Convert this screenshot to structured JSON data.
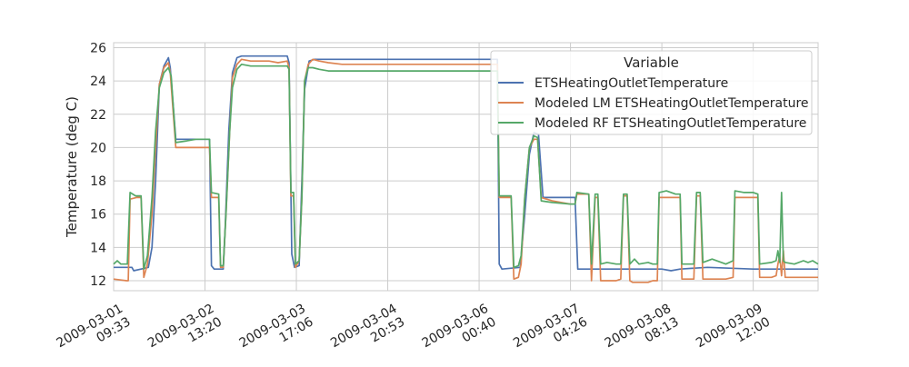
{
  "chart_data": {
    "type": "line",
    "title": "",
    "xlabel": "",
    "ylabel": "Temperature (deg C)",
    "ylim": [
      11.4,
      26.3
    ],
    "yticks": [
      12,
      14,
      16,
      18,
      20,
      22,
      24,
      26
    ],
    "grid": true,
    "legend": {
      "title": "Variable",
      "placement": "top-right"
    },
    "xticks": [
      {
        "x": 0.0,
        "line1": "2009-03-01",
        "line2": "09:33"
      },
      {
        "x": 1.0,
        "line1": "2009-03-02",
        "line2": "13:20"
      },
      {
        "x": 2.0,
        "line1": "2009-03-03",
        "line2": "17:06"
      },
      {
        "x": 3.0,
        "line1": "2009-03-04",
        "line2": "20:53"
      },
      {
        "x": 4.0,
        "line1": "2009-03-06",
        "line2": "00:40"
      },
      {
        "x": 5.0,
        "line1": "2009-03-07",
        "line2": "04:26"
      },
      {
        "x": 6.0,
        "line1": "2009-03-08",
        "line2": "08:13"
      },
      {
        "x": 7.0,
        "line1": "2009-03-09",
        "line2": "12:00"
      }
    ],
    "xlim": [
      0.0,
      7.71
    ],
    "series": [
      {
        "name": "ETSHeatingOutletTemperature",
        "color": "#4c72b0",
        "points": [
          [
            0,
            12.8
          ],
          [
            0.2,
            12.8
          ],
          [
            0.22,
            12.6
          ],
          [
            0.3,
            12.7
          ],
          [
            0.38,
            12.8
          ],
          [
            0.42,
            14
          ],
          [
            0.46,
            18
          ],
          [
            0.5,
            23.8
          ],
          [
            0.55,
            24.9
          ],
          [
            0.6,
            25.4
          ],
          [
            0.62,
            24.8
          ],
          [
            0.68,
            20.5
          ],
          [
            0.8,
            20.5
          ],
          [
            0.9,
            20.5
          ],
          [
            1.05,
            20.5
          ],
          [
            1.07,
            12.9
          ],
          [
            1.1,
            12.7
          ],
          [
            1.2,
            12.7
          ],
          [
            1.22,
            15
          ],
          [
            1.26,
            21
          ],
          [
            1.3,
            24.5
          ],
          [
            1.35,
            25.4
          ],
          [
            1.4,
            25.5
          ],
          [
            1.5,
            25.5
          ],
          [
            1.6,
            25.5
          ],
          [
            1.7,
            25.5
          ],
          [
            1.8,
            25.5
          ],
          [
            1.9,
            25.5
          ],
          [
            1.92,
            25.1
          ],
          [
            1.95,
            13.6
          ],
          [
            1.98,
            12.8
          ],
          [
            2.03,
            12.9
          ],
          [
            2.06,
            18
          ],
          [
            2.09,
            23.5
          ],
          [
            2.14,
            25.2
          ],
          [
            2.2,
            25.3
          ],
          [
            2.5,
            25.3
          ],
          [
            3.0,
            25.3
          ],
          [
            3.5,
            25.3
          ],
          [
            4.0,
            25.3
          ],
          [
            4.2,
            25.3
          ],
          [
            4.22,
            13.0
          ],
          [
            4.25,
            12.7
          ],
          [
            4.45,
            12.8
          ],
          [
            4.5,
            16
          ],
          [
            4.55,
            19.6
          ],
          [
            4.6,
            20.9
          ],
          [
            4.65,
            20.8
          ],
          [
            4.7,
            17
          ],
          [
            4.8,
            17
          ],
          [
            5.0,
            17
          ],
          [
            5.05,
            17
          ],
          [
            5.08,
            12.7
          ],
          [
            5.2,
            12.7
          ],
          [
            6.0,
            12.7
          ],
          [
            6.1,
            12.6
          ],
          [
            6.2,
            12.7
          ],
          [
            6.5,
            12.8
          ],
          [
            7.0,
            12.7
          ],
          [
            7.2,
            12.7
          ],
          [
            7.3,
            12.7
          ],
          [
            7.5,
            12.7
          ],
          [
            7.71,
            12.7
          ]
        ]
      },
      {
        "name": "Modeled LM ETSHeatingOutletTemperature",
        "color": "#dd8452",
        "points": [
          [
            0,
            12.1
          ],
          [
            0.14,
            12.0
          ],
          [
            0.16,
            12.0
          ],
          [
            0.18,
            16.9
          ],
          [
            0.25,
            17.0
          ],
          [
            0.3,
            17.0
          ],
          [
            0.33,
            12.2
          ],
          [
            0.37,
            13.0
          ],
          [
            0.42,
            16
          ],
          [
            0.46,
            20
          ],
          [
            0.5,
            23.8
          ],
          [
            0.55,
            24.8
          ],
          [
            0.6,
            25.1
          ],
          [
            0.62,
            24.5
          ],
          [
            0.68,
            20.0
          ],
          [
            0.8,
            20.0
          ],
          [
            0.9,
            20.0
          ],
          [
            1.05,
            20.0
          ],
          [
            1.07,
            17.0
          ],
          [
            1.15,
            17.0
          ],
          [
            1.17,
            12.8
          ],
          [
            1.2,
            12.8
          ],
          [
            1.23,
            16
          ],
          [
            1.27,
            21
          ],
          [
            1.3,
            24.2
          ],
          [
            1.35,
            25.0
          ],
          [
            1.4,
            25.3
          ],
          [
            1.5,
            25.2
          ],
          [
            1.6,
            25.2
          ],
          [
            1.7,
            25.2
          ],
          [
            1.8,
            25.1
          ],
          [
            1.9,
            25.2
          ],
          [
            1.92,
            24.8
          ],
          [
            1.94,
            17.1
          ],
          [
            1.97,
            17.1
          ],
          [
            1.99,
            12.8
          ],
          [
            2.03,
            13.2
          ],
          [
            2.06,
            17
          ],
          [
            2.09,
            24
          ],
          [
            2.13,
            25.0
          ],
          [
            2.18,
            25.3
          ],
          [
            2.25,
            25.2
          ],
          [
            2.35,
            25.1
          ],
          [
            2.5,
            25.0
          ],
          [
            3.0,
            25.0
          ],
          [
            3.5,
            25.0
          ],
          [
            4.0,
            25.0
          ],
          [
            4.2,
            25.0
          ],
          [
            4.22,
            17.0
          ],
          [
            4.35,
            17.0
          ],
          [
            4.38,
            12.1
          ],
          [
            4.43,
            12.2
          ],
          [
            4.46,
            13
          ],
          [
            4.5,
            17
          ],
          [
            4.55,
            20
          ],
          [
            4.6,
            20.5
          ],
          [
            4.64,
            20.5
          ],
          [
            4.68,
            17.0
          ],
          [
            4.8,
            16.8
          ],
          [
            5.0,
            16.6
          ],
          [
            5.05,
            16.6
          ],
          [
            5.07,
            17.2
          ],
          [
            5.2,
            17.2
          ],
          [
            5.23,
            12.0
          ],
          [
            5.27,
            17.0
          ],
          [
            5.3,
            17.0
          ],
          [
            5.33,
            12.0
          ],
          [
            5.4,
            12.0
          ],
          [
            5.5,
            12.0
          ],
          [
            5.55,
            12.1
          ],
          [
            5.58,
            17.1
          ],
          [
            5.62,
            17.1
          ],
          [
            5.65,
            12.0
          ],
          [
            5.68,
            11.9
          ],
          [
            5.75,
            11.9
          ],
          [
            5.85,
            11.9
          ],
          [
            5.9,
            12.0
          ],
          [
            5.95,
            12.0
          ],
          [
            5.97,
            17.0
          ],
          [
            6.1,
            17.0
          ],
          [
            6.2,
            17.0
          ],
          [
            6.22,
            12.1
          ],
          [
            6.35,
            12.1
          ],
          [
            6.38,
            17.1
          ],
          [
            6.42,
            17.1
          ],
          [
            6.45,
            12.1
          ],
          [
            6.55,
            12.1
          ],
          [
            6.7,
            12.1
          ],
          [
            6.78,
            12.2
          ],
          [
            6.8,
            17.0
          ],
          [
            7.0,
            17.0
          ],
          [
            7.05,
            17.0
          ],
          [
            7.07,
            12.2
          ],
          [
            7.2,
            12.2
          ],
          [
            7.25,
            12.3
          ],
          [
            7.27,
            13.0
          ],
          [
            7.29,
            13.5
          ],
          [
            7.31,
            12.3
          ],
          [
            7.33,
            13.8
          ],
          [
            7.35,
            12.2
          ],
          [
            7.45,
            12.2
          ],
          [
            7.55,
            12.2
          ],
          [
            7.71,
            12.2
          ]
        ]
      },
      {
        "name": "Modeled RF ETSHeatingOutletTemperature",
        "color": "#55a868",
        "points": [
          [
            0,
            13.0
          ],
          [
            0.04,
            13.2
          ],
          [
            0.08,
            13.0
          ],
          [
            0.12,
            13.0
          ],
          [
            0.15,
            13.0
          ],
          [
            0.18,
            17.3
          ],
          [
            0.24,
            17.1
          ],
          [
            0.3,
            17.1
          ],
          [
            0.33,
            12.7
          ],
          [
            0.37,
            13.5
          ],
          [
            0.42,
            17
          ],
          [
            0.46,
            21
          ],
          [
            0.5,
            23.6
          ],
          [
            0.55,
            24.5
          ],
          [
            0.6,
            24.8
          ],
          [
            0.63,
            24.3
          ],
          [
            0.68,
            20.3
          ],
          [
            0.8,
            20.4
          ],
          [
            0.9,
            20.5
          ],
          [
            1.05,
            20.5
          ],
          [
            1.07,
            17.3
          ],
          [
            1.15,
            17.2
          ],
          [
            1.17,
            12.9
          ],
          [
            1.2,
            12.9
          ],
          [
            1.23,
            16
          ],
          [
            1.27,
            21
          ],
          [
            1.3,
            23.6
          ],
          [
            1.35,
            24.7
          ],
          [
            1.4,
            25.0
          ],
          [
            1.5,
            24.9
          ],
          [
            1.6,
            24.9
          ],
          [
            1.7,
            24.9
          ],
          [
            1.8,
            24.9
          ],
          [
            1.9,
            24.9
          ],
          [
            1.92,
            24.7
          ],
          [
            1.94,
            17.3
          ],
          [
            1.97,
            17.3
          ],
          [
            1.99,
            13.0
          ],
          [
            2.03,
            13.2
          ],
          [
            2.06,
            17
          ],
          [
            2.09,
            24
          ],
          [
            2.13,
            24.8
          ],
          [
            2.18,
            24.8
          ],
          [
            2.25,
            24.7
          ],
          [
            2.35,
            24.6
          ],
          [
            2.5,
            24.6
          ],
          [
            3.0,
            24.6
          ],
          [
            3.5,
            24.6
          ],
          [
            4.0,
            24.6
          ],
          [
            4.2,
            24.6
          ],
          [
            4.22,
            17.1
          ],
          [
            4.35,
            17.1
          ],
          [
            4.38,
            12.8
          ],
          [
            4.43,
            12.9
          ],
          [
            4.46,
            13.5
          ],
          [
            4.5,
            17
          ],
          [
            4.55,
            20
          ],
          [
            4.6,
            20.7
          ],
          [
            4.64,
            20.6
          ],
          [
            4.68,
            16.8
          ],
          [
            4.8,
            16.7
          ],
          [
            5.0,
            16.6
          ],
          [
            5.05,
            16.6
          ],
          [
            5.07,
            17.3
          ],
          [
            5.2,
            17.2
          ],
          [
            5.23,
            13.0
          ],
          [
            5.27,
            17.2
          ],
          [
            5.3,
            17.2
          ],
          [
            5.33,
            13.0
          ],
          [
            5.4,
            13.1
          ],
          [
            5.5,
            13.0
          ],
          [
            5.55,
            13.0
          ],
          [
            5.58,
            17.2
          ],
          [
            5.62,
            17.2
          ],
          [
            5.65,
            13.0
          ],
          [
            5.7,
            13.3
          ],
          [
            5.75,
            13.0
          ],
          [
            5.85,
            13.1
          ],
          [
            5.9,
            13.0
          ],
          [
            5.95,
            13.0
          ],
          [
            5.97,
            17.3
          ],
          [
            6.05,
            17.4
          ],
          [
            6.15,
            17.2
          ],
          [
            6.2,
            17.2
          ],
          [
            6.22,
            13.0
          ],
          [
            6.35,
            13.0
          ],
          [
            6.38,
            17.3
          ],
          [
            6.42,
            17.3
          ],
          [
            6.45,
            13.1
          ],
          [
            6.55,
            13.3
          ],
          [
            6.7,
            13.0
          ],
          [
            6.78,
            13.2
          ],
          [
            6.8,
            17.4
          ],
          [
            6.9,
            17.3
          ],
          [
            7.0,
            17.3
          ],
          [
            7.05,
            17.2
          ],
          [
            7.07,
            13.0
          ],
          [
            7.2,
            13.1
          ],
          [
            7.25,
            13.2
          ],
          [
            7.27,
            13.8
          ],
          [
            7.29,
            13.1
          ],
          [
            7.31,
            17.3
          ],
          [
            7.33,
            13.2
          ],
          [
            7.35,
            13.1
          ],
          [
            7.45,
            13.0
          ],
          [
            7.55,
            13.2
          ],
          [
            7.6,
            13.1
          ],
          [
            7.65,
            13.2
          ],
          [
            7.71,
            13.0
          ]
        ]
      }
    ]
  }
}
